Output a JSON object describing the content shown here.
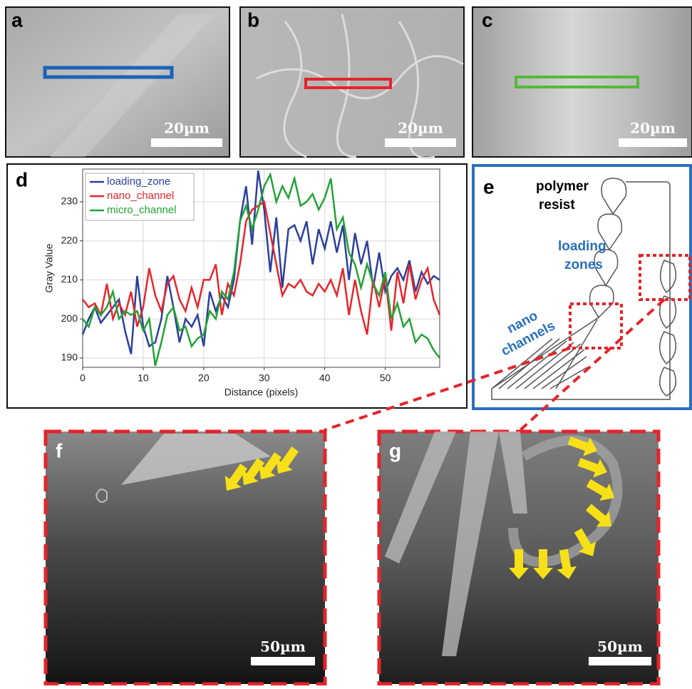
{
  "panels": {
    "a": {
      "label": "a",
      "scale_bar": "20µm"
    },
    "b": {
      "label": "b",
      "scale_bar": "20µm"
    },
    "c": {
      "label": "c",
      "scale_bar": "20µm"
    },
    "d": {
      "label": "d"
    },
    "e": {
      "label": "e",
      "polymer_resist": [
        "polymer",
        "resist"
      ],
      "loading_zones": [
        "loading",
        "zones"
      ],
      "nano_channels": [
        "nano",
        "channels"
      ]
    },
    "f": {
      "label": "f",
      "scale_bar": "50µm"
    },
    "g": {
      "label": "g",
      "scale_bar": "50µm"
    }
  },
  "chart_data": {
    "type": "line",
    "xlabel": "Distance (pixels)",
    "ylabel": "Gray Value",
    "x": [
      0,
      1,
      2,
      3,
      4,
      5,
      6,
      7,
      8,
      9,
      10,
      11,
      12,
      13,
      14,
      15,
      16,
      17,
      18,
      19,
      20,
      21,
      22,
      23,
      24,
      25,
      26,
      27,
      28,
      29,
      30,
      31,
      32,
      33,
      34,
      35,
      36,
      37,
      38,
      39,
      40,
      41,
      42,
      43,
      44,
      45,
      46,
      47,
      48,
      49,
      50,
      51,
      52,
      53,
      54,
      55,
      56,
      57,
      58,
      59
    ],
    "xlim": [
      0,
      59
    ],
    "xticks": [
      0,
      10,
      20,
      30,
      40,
      50
    ],
    "ylim": [
      187.6,
      238.4
    ],
    "yticks": [
      190,
      200,
      210,
      220,
      230
    ],
    "grid": true,
    "legend": "upper-left",
    "series": [
      {
        "name": "loading_zone",
        "color": "#2b3f9e",
        "values": [
          196,
          200,
          203,
          199,
          201,
          203,
          205,
          197,
          191,
          211,
          198,
          193,
          194,
          200,
          211,
          203,
          194,
          200,
          198,
          201,
          193,
          207,
          202,
          206,
          203,
          210,
          225,
          234,
          219,
          238,
          228,
          212,
          226,
          208,
          223,
          224,
          220,
          225,
          214,
          223,
          218,
          225,
          217,
          224,
          210,
          222,
          214,
          220,
          208,
          217,
          207,
          211,
          213,
          210,
          215,
          207,
          212,
          209,
          211,
          210
        ]
      },
      {
        "name": "nano_channel",
        "color": "#e8252a",
        "values": [
          205,
          203,
          204,
          201,
          209,
          200,
          204,
          201,
          207,
          198,
          203,
          213,
          206,
          202,
          209,
          211,
          205,
          202,
          208,
          203,
          210,
          210,
          214,
          201,
          209,
          206,
          214,
          225,
          228,
          229,
          230,
          222,
          214,
          206,
          209,
          208,
          210,
          207,
          206,
          209,
          207,
          210,
          206,
          213,
          201,
          210,
          202,
          196,
          210,
          203,
          211,
          197,
          212,
          204,
          214,
          205,
          210,
          213,
          205,
          201
        ]
      },
      {
        "name": "micro_channel",
        "color": "#21a336",
        "values": [
          200,
          198,
          203,
          201,
          203,
          207,
          200,
          202,
          201,
          202,
          197,
          200,
          188,
          194,
          201,
          203,
          197,
          198,
          193,
          195,
          196,
          202,
          200,
          207,
          205,
          212,
          225,
          229,
          223,
          228,
          234,
          237,
          230,
          234,
          231,
          236,
          229,
          230,
          232,
          228,
          231,
          236,
          223,
          226,
          217,
          214,
          208,
          214,
          209,
          206,
          212,
          200,
          204,
          198,
          200,
          194,
          196,
          195,
          192,
          190
        ]
      }
    ]
  }
}
